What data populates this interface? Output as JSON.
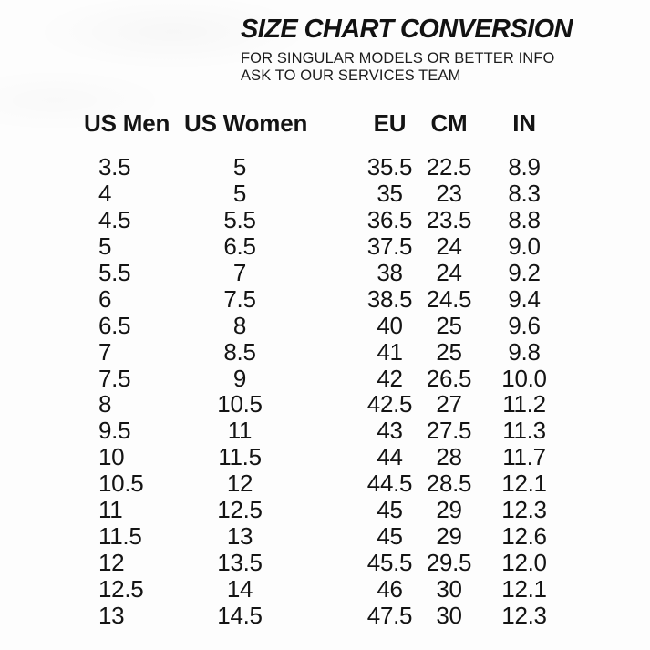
{
  "header": {
    "title": "SIZE CHART CONVERSION",
    "subtitle_line1": "FOR SINGULAR MODELS OR BETTER INFO",
    "subtitle_line2": "ASK TO OUR SERVICES TEAM"
  },
  "table": {
    "columns": [
      "US Men",
      "US Women",
      "EU",
      "CM",
      "IN"
    ],
    "rows": [
      [
        "3.5",
        "5",
        "35.5",
        "22.5",
        "8.9"
      ],
      [
        "4",
        "5",
        "35",
        "23",
        "8.3"
      ],
      [
        "4.5",
        "5.5",
        "36.5",
        "23.5",
        "8.8"
      ],
      [
        "5",
        "6.5",
        "37.5",
        "24",
        "9.0"
      ],
      [
        "5.5",
        "7",
        "38",
        "24",
        "9.2"
      ],
      [
        "6",
        "7.5",
        "38.5",
        "24.5",
        "9.4"
      ],
      [
        "6.5",
        "8",
        "40",
        "25",
        "9.6"
      ],
      [
        "7",
        "8.5",
        "41",
        "25",
        "9.8"
      ],
      [
        "7.5",
        "9",
        "42",
        "26.5",
        "10.0"
      ],
      [
        "8",
        "10.5",
        "42.5",
        "27",
        "11.2"
      ],
      [
        "9.5",
        "11",
        "43",
        "27.5",
        "11.3"
      ],
      [
        "10",
        "11.5",
        "44",
        "28",
        "11.7"
      ],
      [
        "10.5",
        "12",
        "44.5",
        "28.5",
        "12.1"
      ],
      [
        "11",
        "12.5",
        "45",
        "29",
        "12.3"
      ],
      [
        "11.5",
        "13",
        "45",
        "29",
        "12.6"
      ],
      [
        "12",
        "13.5",
        "45.5",
        "29.5",
        "12.0"
      ],
      [
        "12.5",
        "14",
        "46",
        "30",
        "12.1"
      ],
      [
        "13",
        "14.5",
        "47.5",
        "30",
        "12.3"
      ]
    ]
  },
  "colors": {
    "text": "#141414",
    "background": "#fdfdfd"
  }
}
